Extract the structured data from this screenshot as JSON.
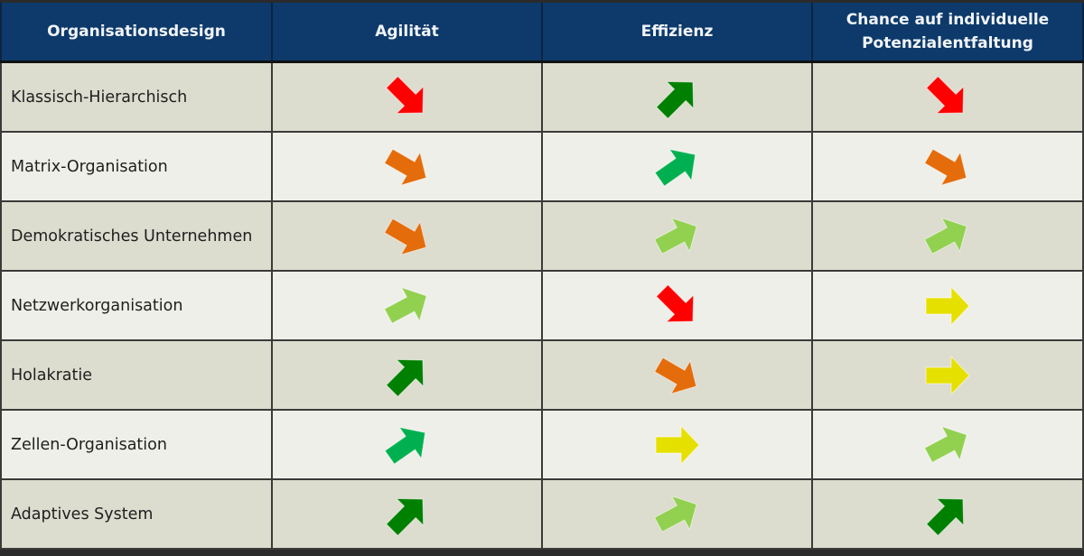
{
  "table": {
    "headers": [
      "Organisationsdesign",
      "Agilität",
      "Effizienz",
      "Chance auf individuelle Potenzialentfaltung"
    ],
    "rows": [
      {
        "label": "Klassisch-Hierarchisch",
        "ratings": [
          "strong-down",
          "strong-up",
          "strong-down"
        ]
      },
      {
        "label": "Matrix-Organisation",
        "ratings": [
          "down",
          "up",
          "down"
        ]
      },
      {
        "label": "Demokratisches Unternehmen",
        "ratings": [
          "down",
          "slight-up",
          "slight-up"
        ]
      },
      {
        "label": "Netzwerkorganisation",
        "ratings": [
          "slight-up",
          "strong-down",
          "neutral"
        ]
      },
      {
        "label": "Holakratie",
        "ratings": [
          "strong-up",
          "down",
          "neutral"
        ]
      },
      {
        "label": "Zellen-Organisation",
        "ratings": [
          "up",
          "neutral",
          "slight-up"
        ]
      },
      {
        "label": "Adaptives System",
        "ratings": [
          "strong-up",
          "slight-up",
          "strong-up"
        ]
      }
    ]
  },
  "legend": {
    "strong-down": {
      "icon": "arrow-down-right-icon",
      "angle": 45,
      "color": "#FF0000"
    },
    "down": {
      "icon": "arrow-down-right-icon",
      "angle": 30,
      "color": "#E46C0A"
    },
    "neutral": {
      "icon": "arrow-right-icon",
      "angle": 0,
      "color": "#E6E000"
    },
    "slight-up": {
      "icon": "arrow-up-right-icon",
      "angle": -28,
      "color": "#92D050"
    },
    "up": {
      "icon": "arrow-up-right-icon",
      "angle": -35,
      "color": "#00B050"
    },
    "strong-up": {
      "icon": "arrow-up-right-icon",
      "angle": -45,
      "color": "#008000"
    }
  },
  "colors": {
    "header_bg": "#0D3A6B",
    "header_text": "#F2F4F8",
    "row_odd": "#DCDCCF",
    "row_even": "#EFEFE9",
    "grid": "#3A3A38"
  }
}
